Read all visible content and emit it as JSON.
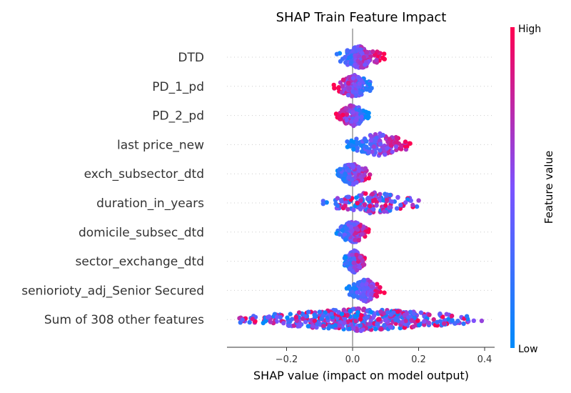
{
  "chart_data": {
    "type": "scatter",
    "title": "SHAP Train Feature Impact",
    "xlabel": "SHAP value (impact on model output)",
    "xlim": [
      -0.37,
      0.43
    ],
    "xticks": [
      -0.2,
      0.0,
      0.2,
      0.4
    ],
    "xtick_labels": [
      "−0.2",
      "0.0",
      "0.2",
      "0.4"
    ],
    "features": [
      "DTD",
      "PD_1_pd",
      "PD_2_pd",
      "last price_new",
      "exch_subsector_dtd",
      "duration_in_years",
      "domicile_subsec_dtd",
      "sector_exchange_dtd",
      "seniorioty_adj_Senior Secured",
      "Sum of 308 other features"
    ],
    "feature_spread": [
      {
        "min": -0.06,
        "max": 0.1,
        "color_trend": "positive"
      },
      {
        "min": -0.06,
        "max": 0.07,
        "color_trend": "negative"
      },
      {
        "min": -0.05,
        "max": 0.05,
        "color_trend": "negative"
      },
      {
        "min": -0.03,
        "max": 0.19,
        "color_trend": "positive"
      },
      {
        "min": -0.06,
        "max": 0.06,
        "color_trend": "positive"
      },
      {
        "min": -0.09,
        "max": 0.21,
        "color_trend": "mixed"
      },
      {
        "min": -0.05,
        "max": 0.05,
        "color_trend": "positive"
      },
      {
        "min": -0.03,
        "max": 0.04,
        "color_trend": "positive"
      },
      {
        "min": -0.02,
        "max": 0.1,
        "color_trend": "positive"
      },
      {
        "min": -0.35,
        "max": 0.4,
        "color_trend": "mixed"
      }
    ],
    "grid": false,
    "colorbar": {
      "label": "Feature value",
      "high_label": "High",
      "low_label": "Low",
      "low_color": "#008bfb",
      "mid_color": "#7c52ff",
      "high_color": "#ff0051"
    }
  }
}
